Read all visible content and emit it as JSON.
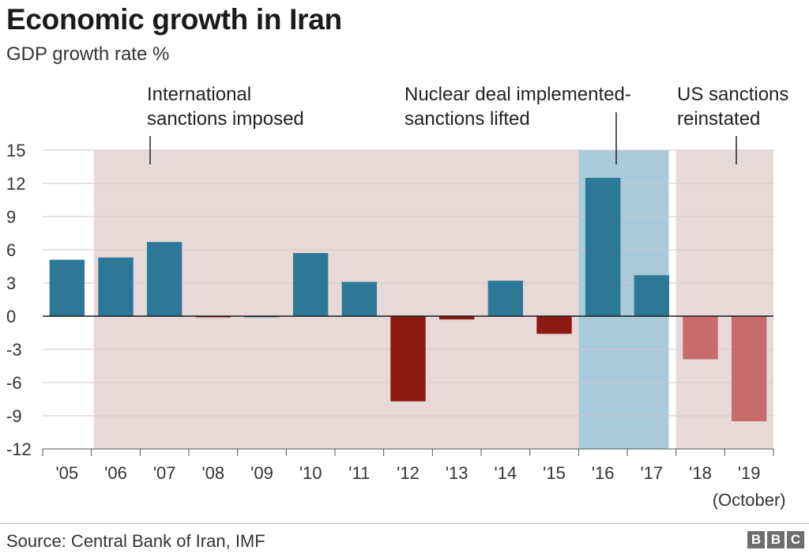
{
  "chart_data": {
    "type": "bar",
    "title": "Economic growth in Iran",
    "subtitle": "GDP growth rate %",
    "categories": [
      "'05",
      "'06",
      "'07",
      "'08",
      "'09",
      "'10",
      "'11",
      "'12",
      "'13",
      "'14",
      "'15",
      "'16",
      "'17",
      "'18",
      "'19"
    ],
    "category_sublabels": {
      "'19": "(October)"
    },
    "values": [
      5.1,
      5.3,
      6.7,
      -0.1,
      0.0,
      5.7,
      3.1,
      -7.7,
      -0.3,
      3.2,
      -1.6,
      12.5,
      3.7,
      -3.9,
      -9.5
    ],
    "ylim": [
      -12,
      15
    ],
    "yticks": [
      15,
      12,
      9,
      6,
      3,
      0,
      -3,
      -6,
      -9,
      -12
    ],
    "xlabel": "",
    "ylabel": "",
    "grid": true,
    "periods": [
      {
        "label": "International sanctions imposed",
        "start": "'06",
        "end": "'15",
        "color": "#e8d9d9"
      },
      {
        "label": "Nuclear deal implemented- sanctions lifted",
        "start": "'16",
        "end": "'17",
        "color": "#a8cad9"
      },
      {
        "label": "US sanctions reinstated",
        "start": "'18",
        "end": "'19",
        "color": "#e8d9d9"
      }
    ],
    "annotations": [
      {
        "lines": [
          "International",
          "sanctions imposed"
        ],
        "points_to": "'07"
      },
      {
        "lines": [
          "Nuclear deal implemented-",
          "sanctions lifted"
        ],
        "points_to": "'16"
      },
      {
        "lines": [
          "US sanctions",
          "reinstated"
        ],
        "points_to": "'19"
      }
    ],
    "colors": {
      "positive": "#2e7897",
      "negative_pre2018": "#8c1a10",
      "negative_2018_on": "#c86b6b",
      "sanctions_band": "#e8d9d9",
      "deal_band": "#a8cad9",
      "grid": "#d6c6c6",
      "zero_line": "#1a1a1a"
    },
    "source": "Source: Central Bank of Iran, IMF"
  },
  "branding": {
    "logo_letters": [
      "B",
      "B",
      "C"
    ]
  }
}
